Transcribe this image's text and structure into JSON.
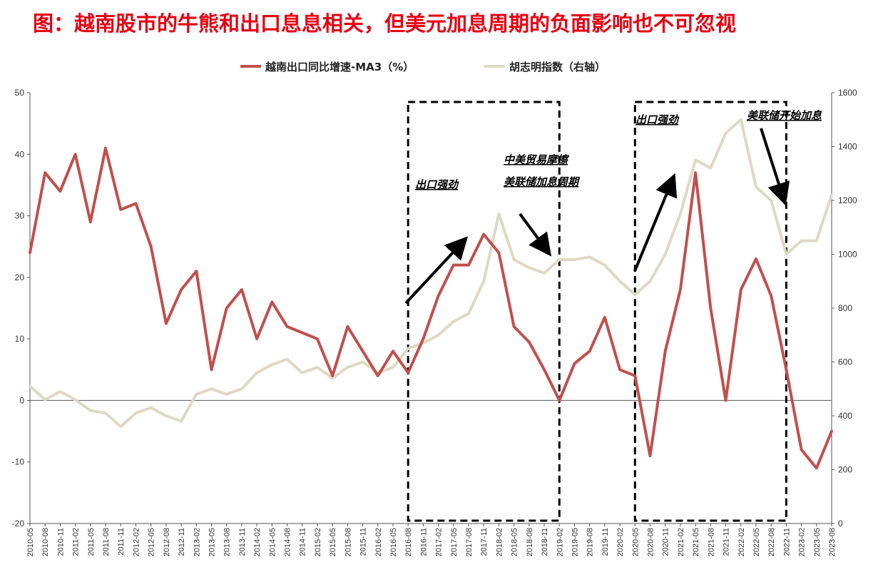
{
  "title": "图：越南股市的牛熊和出口息息相关，但美元加息周期的负面影响也不可忽视",
  "colors": {
    "title": "#e60012",
    "export_line": "#c0504d",
    "index_line": "#ddd9c3"
  },
  "chart_data": {
    "type": "line",
    "x": [
      "2010-05",
      "2010-08",
      "2010-11",
      "2011-02",
      "2011-05",
      "2011-08",
      "2011-11",
      "2012-02",
      "2012-05",
      "2012-08",
      "2012-11",
      "2013-02",
      "2013-05",
      "2013-08",
      "2013-11",
      "2014-02",
      "2014-05",
      "2014-08",
      "2014-11",
      "2015-02",
      "2015-05",
      "2015-08",
      "2015-11",
      "2016-02",
      "2016-05",
      "2016-08",
      "2016-11",
      "2017-02",
      "2017-05",
      "2017-08",
      "2017-11",
      "2018-02",
      "2018-05",
      "2018-08",
      "2018-11",
      "2019-02",
      "2019-05",
      "2019-08",
      "2019-11",
      "2020-02",
      "2020-05",
      "2020-08",
      "2020-11",
      "2021-02",
      "2021-05",
      "2021-08",
      "2021-11",
      "2022-02",
      "2022-05",
      "2022-08",
      "2022-11",
      "2023-02",
      "2023-05",
      "2023-08"
    ],
    "series": [
      {
        "name": "越南出口同比增速-MA3（%）",
        "axis": "left",
        "color": "#c0504d",
        "values": [
          24,
          37,
          34,
          40,
          29,
          41,
          31,
          32,
          25,
          12.5,
          18,
          21,
          5,
          15,
          18,
          10,
          16,
          12,
          11,
          10,
          4,
          12,
          8,
          4,
          8,
          4.5,
          10,
          17,
          22,
          22,
          27,
          24,
          12,
          9.5,
          5,
          0,
          6,
          8,
          13.5,
          5,
          4,
          -9,
          8,
          18,
          37,
          15,
          0,
          18,
          23,
          17,
          5,
          -8,
          -11,
          -5
        ]
      },
      {
        "name": "胡志明指数（右轴）",
        "axis": "right",
        "color": "#ddd9c3",
        "values": [
          510,
          460,
          490,
          460,
          420,
          410,
          360,
          410,
          430,
          400,
          380,
          480,
          500,
          480,
          500,
          560,
          590,
          610,
          560,
          580,
          540,
          580,
          600,
          560,
          580,
          650,
          670,
          700,
          750,
          780,
          900,
          1150,
          980,
          950,
          930,
          980,
          980,
          990,
          960,
          900,
          850,
          900,
          1000,
          1150,
          1350,
          1320,
          1450,
          1500,
          1250,
          1200,
          1000,
          1050,
          1050,
          1220
        ]
      }
    ],
    "y_left": {
      "min": -20,
      "max": 50,
      "ticks": [
        -20,
        -10,
        0,
        10,
        20,
        30,
        40,
        50
      ]
    },
    "y_right": {
      "min": 0,
      "max": 1600,
      "ticks": [
        0,
        200,
        400,
        600,
        800,
        1000,
        1200,
        1400,
        1600
      ]
    },
    "legend_position": "top-center",
    "annotations": [
      {
        "id": "ann-export-strong-1",
        "text": "出口强劲"
      },
      {
        "id": "ann-trade-friction",
        "text": "中美贸易摩擦"
      },
      {
        "id": "ann-fed-cycle",
        "text": "美联储加息周期"
      },
      {
        "id": "ann-export-strong-2",
        "text": "出口强劲"
      },
      {
        "id": "ann-fed-hike-start",
        "text": "美联储开始加息"
      }
    ],
    "shaded_boxes": [
      {
        "from": "2016-08",
        "to": "2019-02"
      },
      {
        "from": "2020-05",
        "to": "2022-11"
      }
    ]
  }
}
